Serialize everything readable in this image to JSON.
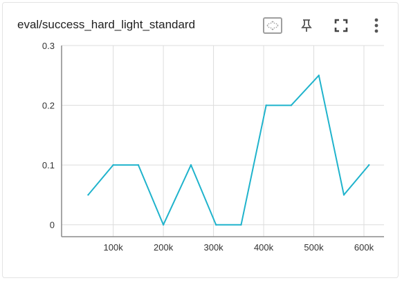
{
  "card": {
    "title": "eval/success_hard_light_standard",
    "icons": {
      "fit": "fit-to-data-icon",
      "pin": "pin-icon",
      "fullscreen": "fullscreen-icon",
      "menu": "more-vert-icon"
    }
  },
  "colors": {
    "series": "#1fb3cc",
    "grid": "#dcdcdc",
    "axis": "#8a8a8a",
    "tick_text": "#333333"
  },
  "chart_data": {
    "type": "line",
    "title": "",
    "xlabel": "",
    "ylabel": "",
    "x_ticks": [
      "100k",
      "200k",
      "300k",
      "400k",
      "500k",
      "600k"
    ],
    "y_ticks": [
      "0",
      "0.1",
      "0.2",
      "0.3"
    ],
    "xlim": [
      -3000,
      640000
    ],
    "ylim": [
      -0.02,
      0.3
    ],
    "grid": true,
    "series": [
      {
        "x": [
          50000,
          100000,
          150000,
          200000,
          255000,
          305000,
          355000,
          405000,
          455000,
          510000,
          560000,
          610000
        ],
        "y": [
          0.05,
          0.1,
          0.1,
          0.0,
          0.1,
          0.0,
          0.0,
          0.2,
          0.2,
          0.25,
          0.05,
          0.1
        ]
      }
    ]
  }
}
